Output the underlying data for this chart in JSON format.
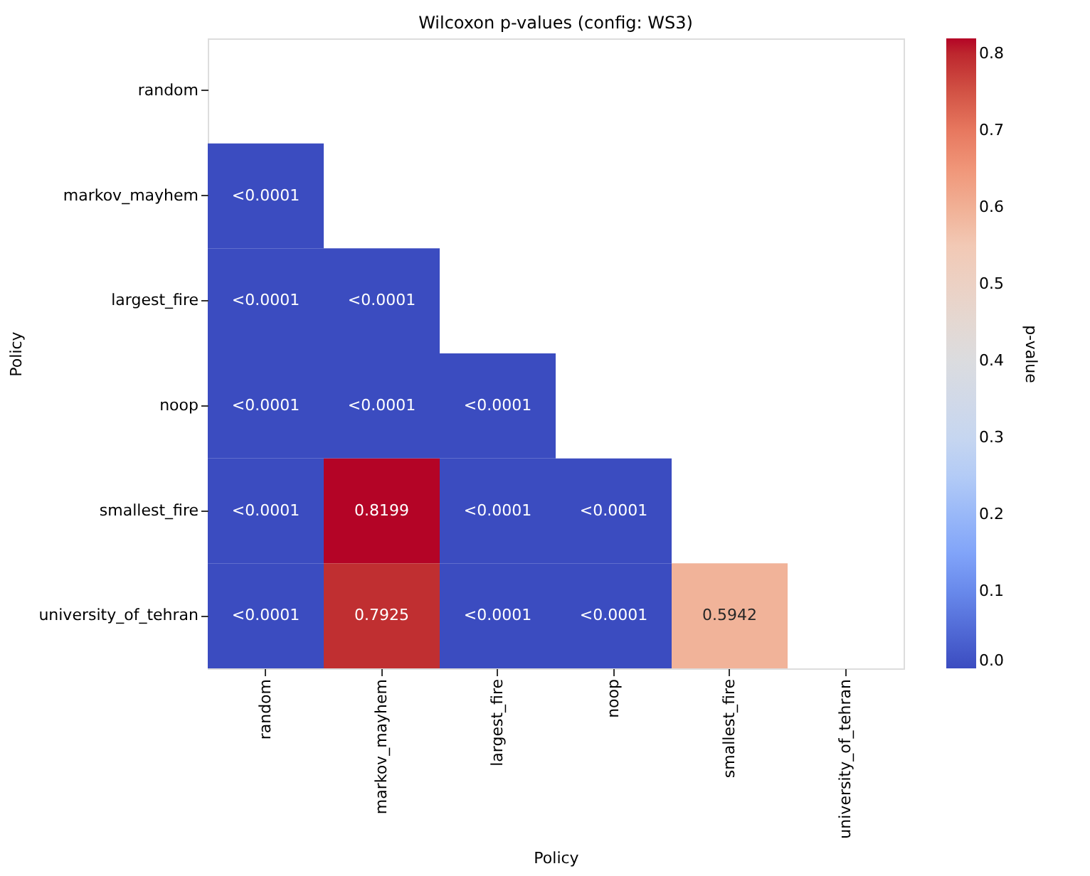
{
  "chart_data": {
    "type": "heatmap",
    "title": "Wilcoxon p-values (config: WS3)",
    "xlabel": "Policy",
    "ylabel": "Policy",
    "clabel": "p-value",
    "categories": [
      "random",
      "markov_mayhem",
      "largest_fire",
      "noop",
      "smallest_fire",
      "university_of_tehran"
    ],
    "y_categories": [
      "random",
      "markov_mayhem",
      "largest_fire",
      "noop",
      "smallest_fire",
      "university_of_tehran"
    ],
    "cells": [
      [
        null,
        null,
        null,
        null,
        null,
        null
      ],
      [
        0,
        null,
        null,
        null,
        null,
        null
      ],
      [
        0,
        0,
        null,
        null,
        null,
        null
      ],
      [
        0,
        0,
        0,
        null,
        null,
        null
      ],
      [
        0,
        0.8199,
        0,
        0,
        null,
        null
      ],
      [
        0,
        0.7925,
        0,
        0,
        0.5942,
        null
      ]
    ],
    "cell_labels": [
      [
        null,
        null,
        null,
        null,
        null,
        null
      ],
      [
        "<0.0001",
        null,
        null,
        null,
        null,
        null
      ],
      [
        "<0.0001",
        "<0.0001",
        null,
        null,
        null,
        null
      ],
      [
        "<0.0001",
        "<0.0001",
        "<0.0001",
        null,
        null,
        null
      ],
      [
        "<0.0001",
        "0.8199",
        "<0.0001",
        "<0.0001",
        null,
        null
      ],
      [
        "<0.0001",
        "0.7925",
        "<0.0001",
        "<0.0001",
        "0.5942",
        null
      ]
    ],
    "clim": [
      0,
      0.8199
    ],
    "cticks": [
      {
        "value": 0,
        "label": "0.0"
      },
      0.1,
      0.2,
      0.3,
      0.4,
      0.5,
      0.6,
      0.7,
      0.8
    ]
  }
}
